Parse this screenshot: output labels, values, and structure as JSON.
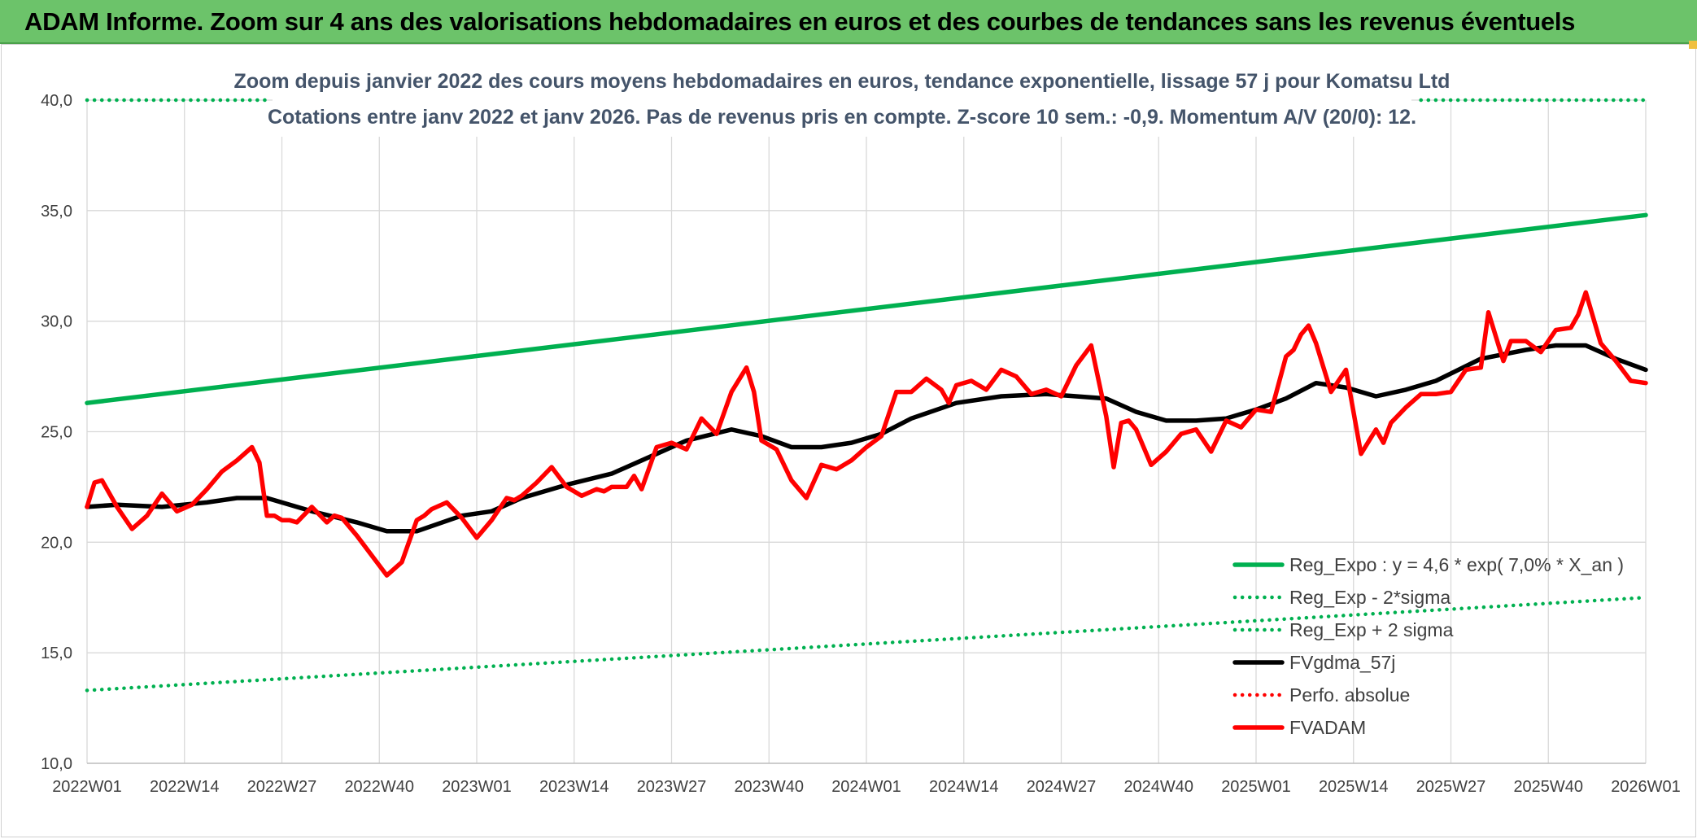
{
  "banner": {
    "title": "ADAM Informe. Zoom sur 4 ans des valorisations hebdomadaires en euros et des courbes de tendances sans les revenus éventuels"
  },
  "chart_data": {
    "type": "line",
    "title_line1": "Zoom depuis janvier 2022 des cours moyens hebdomadaires en euros, tendance exponentielle, lissage 57 j pour Komatsu Ltd",
    "title_line2": "Cotations entre janv 2022 et janv 2026. Pas de revenus pris en compte. Z-score 10 sem.: -0,9. Momentum A/V (20/0): 12.",
    "ylim": [
      10,
      40
    ],
    "ytick_values": [
      10,
      15,
      20,
      25,
      30,
      35,
      40
    ],
    "ytick_labels": [
      "10,0",
      "15,0",
      "20,0",
      "25,0",
      "30,0",
      "35,0",
      "40,0"
    ],
    "x_range": [
      0,
      208
    ],
    "xtick_positions": [
      0,
      13,
      26,
      39,
      52,
      65,
      78,
      91,
      104,
      117,
      130,
      143,
      156,
      169,
      182,
      195,
      208
    ],
    "xtick_labels": [
      "2022W01",
      "2022W14",
      "2022W27",
      "2022W40",
      "2023W01",
      "2023W14",
      "2023W27",
      "2023W40",
      "2024W01",
      "2024W14",
      "2024W27",
      "2024W40",
      "2025W01",
      "2025W14",
      "2025W27",
      "2025W40",
      "2026W01"
    ],
    "grid": true,
    "legend_position": "bottom-right",
    "series": [
      {
        "name": "Reg_Expo : y = 4,6 * exp( 7,0% *  X_an )",
        "color": "#00b050",
        "style": "solid",
        "x": [
          0,
          208
        ],
        "values": [
          26.3,
          34.8
        ]
      },
      {
        "name": "Reg_Exp - 2*sigma",
        "color": "#00b050",
        "style": "dotted",
        "x": [
          0,
          208
        ],
        "values": [
          13.3,
          17.5
        ]
      },
      {
        "name": "Reg_Exp + 2 sigma",
        "color": "#00b050",
        "style": "dotted",
        "x": [
          0,
          24,
          178,
          208
        ],
        "values": [
          40.0,
          40.0,
          40.0,
          40.0
        ],
        "segments": [
          [
            0,
            24
          ],
          [
            178,
            208
          ]
        ]
      },
      {
        "name": "FVgdma_57j",
        "color": "#000000",
        "style": "solid",
        "x": [
          0,
          4,
          10,
          16,
          20,
          24,
          30,
          36,
          40,
          44,
          50,
          54,
          58,
          64,
          70,
          76,
          80,
          86,
          90,
          94,
          98,
          102,
          106,
          110,
          116,
          122,
          128,
          132,
          136,
          140,
          144,
          148,
          152,
          156,
          160,
          164,
          168,
          172,
          176,
          180,
          186,
          192,
          196,
          200,
          204,
          208
        ],
        "values": [
          21.6,
          21.7,
          21.6,
          21.8,
          22.0,
          22.0,
          21.4,
          20.9,
          20.5,
          20.5,
          21.2,
          21.4,
          22.0,
          22.6,
          23.1,
          24.0,
          24.6,
          25.1,
          24.8,
          24.3,
          24.3,
          24.5,
          24.9,
          25.6,
          26.3,
          26.6,
          26.7,
          26.6,
          26.5,
          25.9,
          25.5,
          25.5,
          25.6,
          26.0,
          26.5,
          27.2,
          27.0,
          26.6,
          26.9,
          27.3,
          28.3,
          28.7,
          28.9,
          28.9,
          28.3,
          27.8
        ]
      },
      {
        "name": "Perfo. absolue",
        "color": "#ff0000",
        "style": "dotted",
        "x": [],
        "values": []
      },
      {
        "name": "FVADAM",
        "color": "#ff0000",
        "style": "solid",
        "x": [
          0,
          1,
          2,
          4,
          6,
          8,
          10,
          12,
          14,
          16,
          18,
          20,
          22,
          23,
          24,
          25,
          26,
          27,
          28,
          30,
          32,
          33,
          34,
          36,
          38,
          40,
          42,
          44,
          45,
          46,
          48,
          50,
          52,
          54,
          56,
          57,
          58,
          60,
          62,
          64,
          66,
          68,
          69,
          70,
          72,
          73,
          74,
          76,
          78,
          80,
          82,
          84,
          86,
          88,
          89,
          90,
          91,
          92,
          94,
          96,
          98,
          100,
          102,
          104,
          106,
          108,
          110,
          112,
          114,
          115,
          116,
          118,
          120,
          122,
          124,
          126,
          128,
          130,
          131,
          132,
          134,
          136,
          137,
          138,
          139,
          140,
          142,
          144,
          146,
          148,
          150,
          152,
          154,
          156,
          158,
          160,
          161,
          162,
          163,
          164,
          165,
          166,
          168,
          170,
          172,
          173,
          174,
          176,
          178,
          180,
          182,
          184,
          186,
          187,
          188,
          189,
          190,
          192,
          194,
          196,
          198,
          199,
          200,
          202,
          204,
          206,
          208
        ],
        "values": [
          21.6,
          22.7,
          22.8,
          21.6,
          20.6,
          21.2,
          22.2,
          21.4,
          21.7,
          22.4,
          23.2,
          23.7,
          24.3,
          23.6,
          21.2,
          21.2,
          21.0,
          21.0,
          20.9,
          21.6,
          20.9,
          21.2,
          21.1,
          20.3,
          19.4,
          18.5,
          19.1,
          21.0,
          21.2,
          21.5,
          21.8,
          21.1,
          20.2,
          21.0,
          22.0,
          21.9,
          22.1,
          22.7,
          23.4,
          22.5,
          22.1,
          22.4,
          22.3,
          22.5,
          22.5,
          23.0,
          22.4,
          24.3,
          24.5,
          24.2,
          25.6,
          24.9,
          26.8,
          27.9,
          26.8,
          24.6,
          24.4,
          24.2,
          22.8,
          22.0,
          23.5,
          23.3,
          23.7,
          24.3,
          24.8,
          26.8,
          26.8,
          27.4,
          26.9,
          26.3,
          27.1,
          27.3,
          26.9,
          27.8,
          27.5,
          26.7,
          26.9,
          26.6,
          27.3,
          28.0,
          28.9,
          25.7,
          23.4,
          25.4,
          25.5,
          25.1,
          23.5,
          24.1,
          24.9,
          25.1,
          24.1,
          25.5,
          25.2,
          26.0,
          25.9,
          28.4,
          28.7,
          29.4,
          29.8,
          29.0,
          27.9,
          26.8,
          27.8,
          24.0,
          25.1,
          24.5,
          25.4,
          26.1,
          26.7,
          26.7,
          26.8,
          27.8,
          27.9,
          30.4,
          29.3,
          28.2,
          29.1,
          29.1,
          28.6,
          29.6,
          29.7,
          30.3,
          31.3,
          29.0,
          28.2,
          27.3,
          27.2
        ]
      }
    ]
  }
}
